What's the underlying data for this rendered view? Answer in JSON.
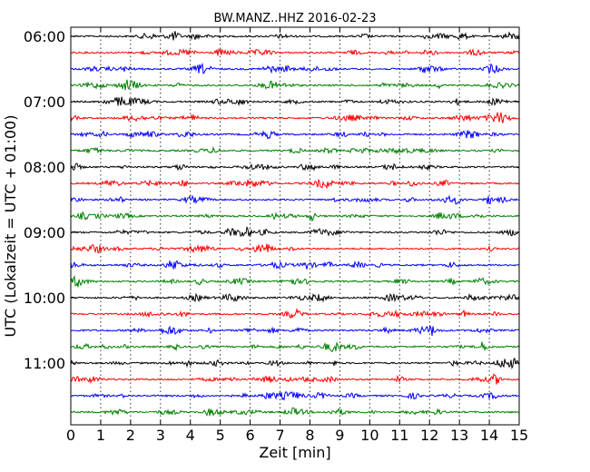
{
  "chart_data": {
    "type": "line",
    "title": "BW.MANZ..HHZ 2016-02-23",
    "xlabel": "Zeit  [min]",
    "ylabel": "UTC (Lokalzeit = UTC + 01:00)",
    "xlim": [
      0,
      15
    ],
    "x_ticks": [
      0,
      1,
      2,
      3,
      4,
      5,
      6,
      7,
      8,
      9,
      10,
      11,
      12,
      13,
      14,
      15
    ],
    "x_tick_labels": [
      "0",
      "1",
      "2",
      "3",
      "4",
      "5",
      "6",
      "7",
      "8",
      "9",
      "10",
      "11",
      "12",
      "13",
      "14",
      "15"
    ],
    "y_tick_labels": [
      "06:00",
      "07:00",
      "08:00",
      "09:00",
      "10:00",
      "11:00"
    ],
    "grid": "vertical dotted",
    "trace_interval_min": 15,
    "trace_colors": [
      "#000000",
      "#ff0000",
      "#0000ff",
      "#008000"
    ],
    "traces": [
      {
        "start": "06:00",
        "color": "#000000"
      },
      {
        "start": "06:15",
        "color": "#ff0000"
      },
      {
        "start": "06:30",
        "color": "#0000ff"
      },
      {
        "start": "06:45",
        "color": "#008000"
      },
      {
        "start": "07:00",
        "color": "#000000"
      },
      {
        "start": "07:15",
        "color": "#ff0000"
      },
      {
        "start": "07:30",
        "color": "#0000ff"
      },
      {
        "start": "07:45",
        "color": "#008000"
      },
      {
        "start": "08:00",
        "color": "#000000"
      },
      {
        "start": "08:15",
        "color": "#ff0000"
      },
      {
        "start": "08:30",
        "color": "#0000ff"
      },
      {
        "start": "08:45",
        "color": "#008000"
      },
      {
        "start": "09:00",
        "color": "#000000"
      },
      {
        "start": "09:15",
        "color": "#ff0000"
      },
      {
        "start": "09:30",
        "color": "#0000ff"
      },
      {
        "start": "09:45",
        "color": "#008000"
      },
      {
        "start": "10:00",
        "color": "#000000"
      },
      {
        "start": "10:15",
        "color": "#ff0000"
      },
      {
        "start": "10:30",
        "color": "#0000ff"
      },
      {
        "start": "10:45",
        "color": "#008000"
      },
      {
        "start": "11:00",
        "color": "#000000"
      },
      {
        "start": "11:15",
        "color": "#ff0000"
      },
      {
        "start": "11:30",
        "color": "#0000ff"
      },
      {
        "start": "11:45",
        "color": "#008000"
      }
    ]
  }
}
